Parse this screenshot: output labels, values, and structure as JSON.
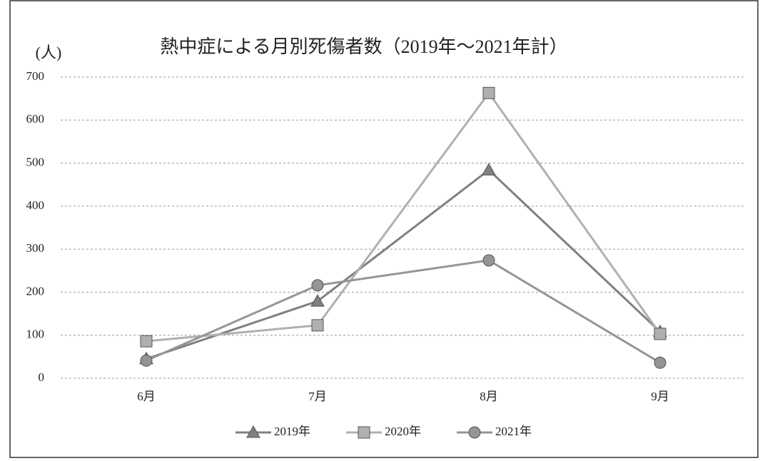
{
  "chart_data": {
    "type": "line",
    "title": "熱中症による月別死傷者数（2019年～2021年計）",
    "y_label": "(人)",
    "categories": [
      "6月",
      "7月",
      "8月",
      "9月"
    ],
    "series": [
      {
        "name": "2019年",
        "color": "#808080",
        "marker": "triangle",
        "values": [
          45,
          179,
          484,
          108
        ]
      },
      {
        "name": "2020年",
        "color": "#b0b0b0",
        "marker": "square",
        "values": [
          86,
          123,
          663,
          103
        ]
      },
      {
        "name": "2021年",
        "color": "#959595",
        "marker": "circle",
        "values": [
          41,
          216,
          274,
          36
        ]
      }
    ],
    "ylim": [
      0,
      700
    ],
    "yticks": [
      0,
      100,
      200,
      300,
      400,
      500,
      600,
      700
    ],
    "grid": true,
    "legend": "bottom"
  }
}
